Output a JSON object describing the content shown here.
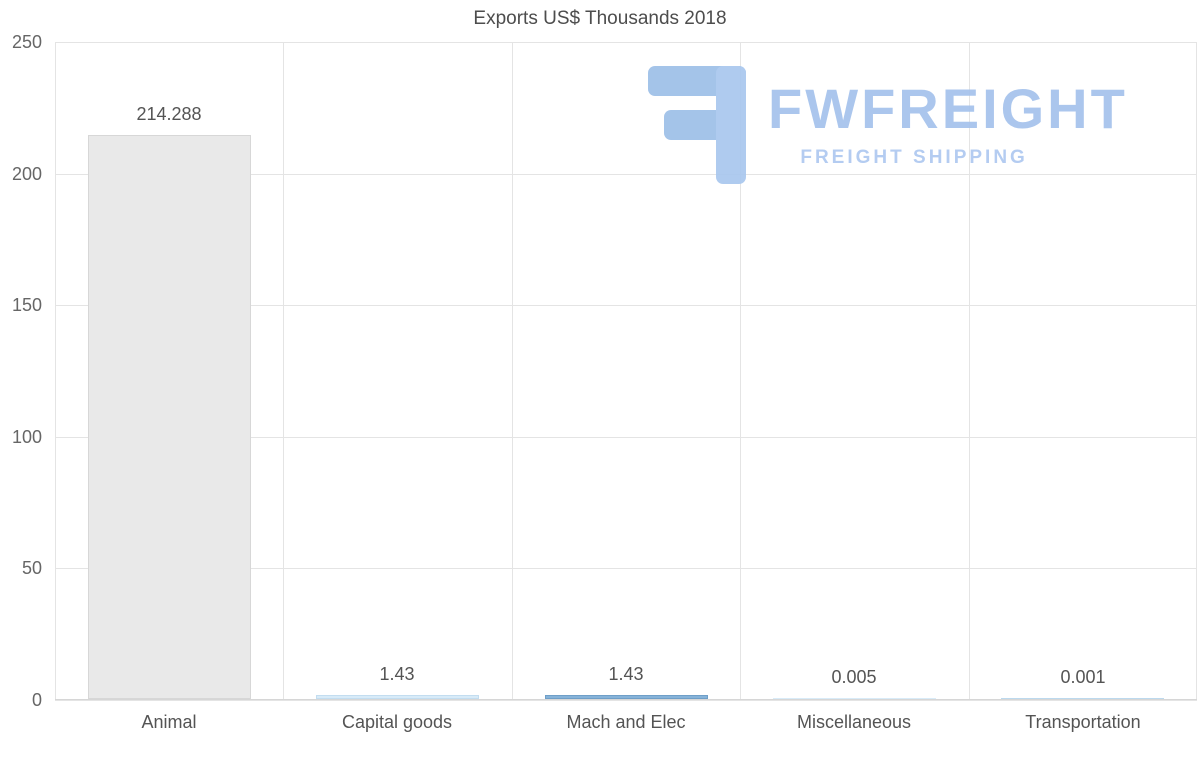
{
  "title": "Exports US$ Thousands 2018",
  "watermark": {
    "brand": "FWFREIGHT",
    "tagline": "FREIGHT SHIPPING",
    "color": "#a4c2ec"
  },
  "chart_data": {
    "type": "bar",
    "title": "Exports US$ Thousands 2018",
    "categories": [
      "Animal",
      "Capital goods",
      "Mach and Elec",
      "Miscellaneous",
      "Transportation"
    ],
    "values": [
      214.288,
      1.43,
      1.43,
      0.005,
      0.001
    ],
    "value_labels": [
      "214.288",
      "1.43",
      "1.43",
      "0.005",
      "0.001"
    ],
    "bar_colors": [
      "#e9e9e9",
      "#d8ebf8",
      "#86b3d9",
      "#d8ebf8",
      "#bcd9ee"
    ],
    "bar_border_colors": [
      "#d7d7d7",
      "#c3ddf0",
      "#6f9fc8",
      "#c3ddf0",
      "#a9cce6"
    ],
    "xlabel": "",
    "ylabel": "",
    "ylim": [
      0,
      250
    ],
    "yticks": [
      0,
      50,
      100,
      150,
      200,
      250
    ],
    "grid": true,
    "legend": false,
    "gridline_color": "#e4e4e4",
    "text_color": "#545454"
  }
}
